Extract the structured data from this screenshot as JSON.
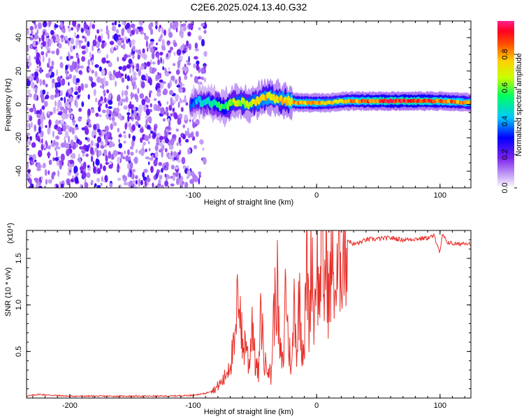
{
  "title": "C2E6.2025.024.13.40.G32",
  "chart_data": [
    {
      "type": "heatmap",
      "xlabel": "Height of straight line (km)",
      "ylabel": "Frequency (Hz)",
      "xlim": [
        -235,
        125
      ],
      "ylim": [
        -50,
        50
      ],
      "xticks": [
        -200,
        -100,
        0,
        100
      ],
      "yticks": [
        -40,
        -20,
        0,
        20,
        40
      ],
      "colorbar": {
        "label": "Normalized spectral amplitude",
        "range": [
          0,
          1
        ],
        "ticks": [
          "0.0",
          "0.2",
          "0.4",
          "0.6",
          "0.8"
        ],
        "colors": [
          "#ffffff",
          "#c39cf5",
          "#7a20f0",
          "#0000ff",
          "#00c8ff",
          "#00ff60",
          "#c8ff00",
          "#ffd000",
          "#ff5000",
          "#ff0020",
          "#ff2090"
        ]
      },
      "noise_region_x": [
        -235,
        -90
      ],
      "signal_start_x": -102,
      "ridge": {
        "x": [
          -102,
          -95,
          -85,
          -75,
          -65,
          -55,
          -45,
          -38,
          -32,
          -25,
          -15,
          -5,
          0,
          10,
          20,
          40,
          60,
          80,
          100,
          125
        ],
        "y": [
          0,
          2,
          1,
          -2,
          2,
          0,
          3,
          5,
          3,
          2,
          1,
          1,
          1,
          1,
          2,
          2,
          2,
          2,
          2,
          1
        ],
        "amplitude": [
          0.35,
          0.45,
          0.5,
          0.6,
          0.7,
          0.7,
          0.75,
          0.8,
          0.75,
          0.8,
          0.85,
          0.8,
          0.85,
          0.75,
          0.8,
          0.9,
          0.95,
          0.95,
          0.9,
          0.8
        ]
      }
    },
    {
      "type": "line",
      "xlabel": "Height of straight line (km)",
      "ylabel": "SNR (10 * v/v)",
      "multiplier_label": "(x10⁴)",
      "xlim": [
        -235,
        125
      ],
      "ylim": [
        0,
        1.8
      ],
      "xticks": [
        -200,
        -100,
        0,
        100
      ],
      "yticks": [
        "0.5",
        "1.0",
        "1.5"
      ],
      "color": "#e8302a",
      "series": [
        {
          "x": [
            -235,
            -225,
            -215,
            -200,
            -180,
            -160,
            -140,
            -120,
            -100,
            -90,
            -82,
            -75,
            -70,
            -66,
            -63,
            -60,
            -57,
            -55,
            -52,
            -50,
            -47,
            -45,
            -42,
            -40,
            -37,
            -35,
            -32,
            -30,
            -27,
            -25,
            -23,
            -20,
            -18,
            -16,
            -14,
            -12,
            -10,
            -8,
            -6,
            -4,
            -2,
            0,
            2,
            4,
            6,
            8,
            10,
            12,
            14,
            16,
            18,
            20,
            25,
            30,
            35,
            40,
            50,
            60,
            70,
            80,
            90,
            95,
            98,
            100,
            102,
            105,
            110,
            115,
            120,
            125
          ],
          "y": [
            0.02,
            0.04,
            0.03,
            0.02,
            0.02,
            0.02,
            0.02,
            0.02,
            0.03,
            0.05,
            0.1,
            0.2,
            0.4,
            0.55,
            1.3,
            0.5,
            0.65,
            0.3,
            0.9,
            0.4,
            0.25,
            0.95,
            0.3,
            0.45,
            0.2,
            0.85,
            1.25,
            0.5,
            0.35,
            1.32,
            0.6,
            0.3,
            1.15,
            0.45,
            1.15,
            0.6,
            0.55,
            1.55,
            0.7,
            1.75,
            0.75,
            1.7,
            0.95,
            1.8,
            1.1,
            1.6,
            0.95,
            1.45,
            1.3,
            1.1,
            1.5,
            1.55,
            1.7,
            1.65,
            1.67,
            1.7,
            1.71,
            1.72,
            1.7,
            1.71,
            1.72,
            1.74,
            1.65,
            1.55,
            1.76,
            1.68,
            1.66,
            1.65,
            1.67,
            1.66
          ]
        }
      ]
    }
  ]
}
